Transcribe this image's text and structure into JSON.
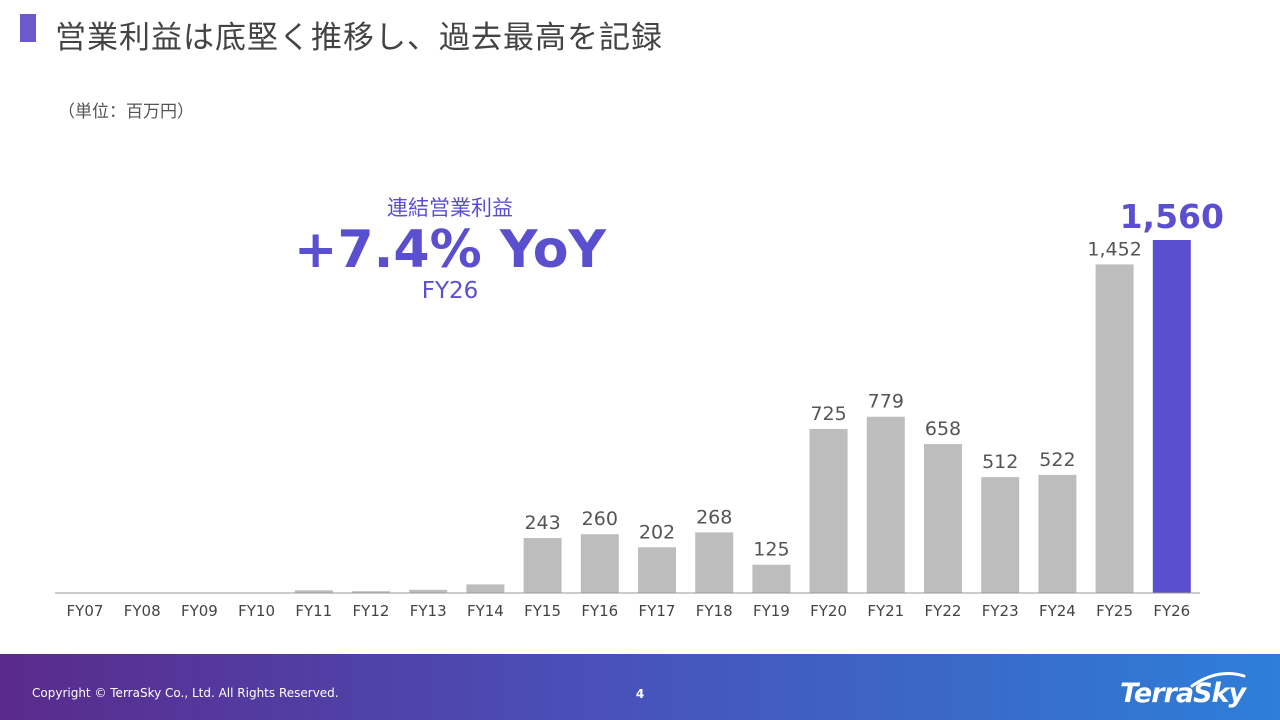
{
  "slide": {
    "title": "営業利益は底堅く推移し、過去最高を記録",
    "unit": "（単位：百万円）"
  },
  "callout": {
    "label": "連結営業利益",
    "value": "+7.4% YoY",
    "year": "FY26"
  },
  "chart_data": {
    "type": "bar",
    "title": "",
    "xlabel": "",
    "ylabel": "",
    "categories": [
      "FY07",
      "FY08",
      "FY09",
      "FY10",
      "FY11",
      "FY12",
      "FY13",
      "FY14",
      "FY15",
      "FY16",
      "FY17",
      "FY18",
      "FY19",
      "FY20",
      "FY21",
      "FY22",
      "FY23",
      "FY24",
      "FY25",
      "FY26"
    ],
    "values": [
      0,
      0,
      0,
      0,
      12,
      8,
      14,
      38,
      243,
      260,
      202,
      268,
      125,
      725,
      779,
      658,
      512,
      522,
      1452,
      1560
    ],
    "data_labels": [
      "",
      "",
      "",
      "",
      "",
      "",
      "",
      "",
      "243",
      "260",
      "202",
      "268",
      "125",
      "725",
      "779",
      "658",
      "512",
      "522",
      "1,452",
      "1,560"
    ],
    "highlight_index": 19,
    "ylim": [
      0,
      1560
    ],
    "grid": false,
    "colors": {
      "bar": "#bdbdbd",
      "highlight": "#5a4fcf",
      "axis": "#999999",
      "label": "#555555"
    }
  },
  "footer": {
    "copyright": "Copyright © TerraSky Co., Ltd. All Rights Reserved.",
    "page_number": "4",
    "logo_text": "TerraSky"
  }
}
